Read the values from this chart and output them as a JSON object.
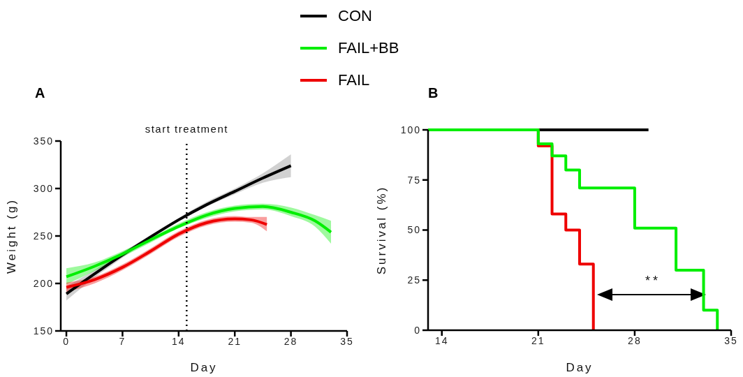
{
  "chart_data": [
    {
      "type": "line",
      "title": "A",
      "xlabel": "Day",
      "ylabel": "Weight (g)",
      "xlim": [
        -0.7,
        35
      ],
      "xticks": [
        0,
        7,
        14,
        21,
        28,
        35
      ],
      "ylim": [
        150,
        350
      ],
      "yticks": [
        150,
        200,
        250,
        300,
        350
      ],
      "legend": "top",
      "grid": false,
      "ref_lines": [
        {
          "axis": "x",
          "value": 15,
          "label": "start treatment",
          "line_style": "dotted",
          "color": "#000000"
        }
      ],
      "series": [
        {
          "name": "CON",
          "color": "#000000",
          "x": [
            0,
            3.5,
            7,
            10.5,
            14,
            17.5,
            21,
            24.5,
            28
          ],
          "values": [
            189,
            210,
            230,
            249,
            267,
            283,
            297,
            311,
            324
          ],
          "lower": [
            182,
            206,
            227,
            247,
            265,
            281,
            294,
            306,
            312
          ],
          "upper": [
            197,
            214,
            233,
            251,
            269,
            286,
            300,
            316,
            336
          ]
        },
        {
          "name": "FAIL+BB",
          "color": "#00ee00",
          "x": [
            0,
            3.5,
            7,
            10.5,
            14,
            17.5,
            21,
            24.5,
            28,
            31,
            33
          ],
          "values": [
            207,
            218,
            231,
            246,
            260,
            272,
            279,
            281,
            275,
            266,
            254
          ],
          "lower": [
            199,
            213,
            228,
            243,
            258,
            269,
            276,
            278,
            271,
            260,
            242
          ],
          "upper": [
            216,
            222,
            234,
            248,
            263,
            275,
            282,
            284,
            280,
            272,
            266
          ]
        },
        {
          "name": "FAIL",
          "color": "#ee0000",
          "x": [
            0,
            3.5,
            7,
            10.5,
            14,
            17.5,
            21,
            23,
            25
          ],
          "values": [
            196,
            204,
            217,
            234,
            252,
            264,
            268,
            267,
            262
          ],
          "lower": [
            191,
            200,
            214,
            231,
            249,
            261,
            265,
            264,
            255
          ],
          "upper": [
            201,
            207,
            220,
            237,
            255,
            267,
            271,
            270,
            270
          ]
        }
      ]
    },
    {
      "type": "step",
      "title": "B",
      "xlabel": "Day",
      "ylabel": "Survival (%)",
      "xlim": [
        13,
        35
      ],
      "xticks": [
        14,
        21,
        28,
        35
      ],
      "ylim": [
        0,
        100
      ],
      "yticks": [
        0,
        25,
        50,
        75,
        100
      ],
      "grid": false,
      "annotations": [
        "**"
      ],
      "series": [
        {
          "color": "#000000",
          "x": [
            13,
            29
          ],
          "values": [
            100,
            100
          ]
        },
        {
          "color": "#ee0000",
          "x": [
            13,
            21,
            22,
            23,
            24,
            25
          ],
          "values": [
            100,
            92,
            58,
            50,
            33,
            0
          ]
        },
        {
          "color": "#00ee00",
          "x": [
            13,
            21,
            22,
            23,
            24,
            28,
            31,
            33,
            34
          ],
          "values": [
            100,
            93,
            87,
            80,
            71,
            51,
            30,
            10,
            0
          ]
        }
      ]
    }
  ]
}
